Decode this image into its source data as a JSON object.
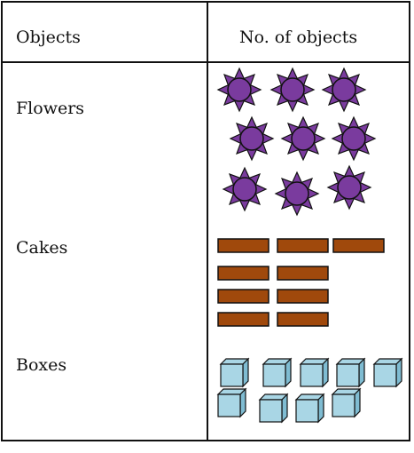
{
  "table": {
    "header": {
      "col1": "Objects",
      "col2": "No. of objects"
    },
    "rows": [
      {
        "label": "Flowers",
        "count": 9,
        "icon": "flower-icon"
      },
      {
        "label": "Cakes",
        "count": 9,
        "icon": "cake-icon"
      },
      {
        "label": "Boxes",
        "count": 9,
        "icon": "box-icon"
      }
    ]
  },
  "colors": {
    "flower_center": "#7a3b9e",
    "flower_petal": "#7a3b9e",
    "cake": "#a0490c",
    "box_front": "#a9d6e5",
    "box_side": "#7fbcd2",
    "border": "#111111"
  }
}
